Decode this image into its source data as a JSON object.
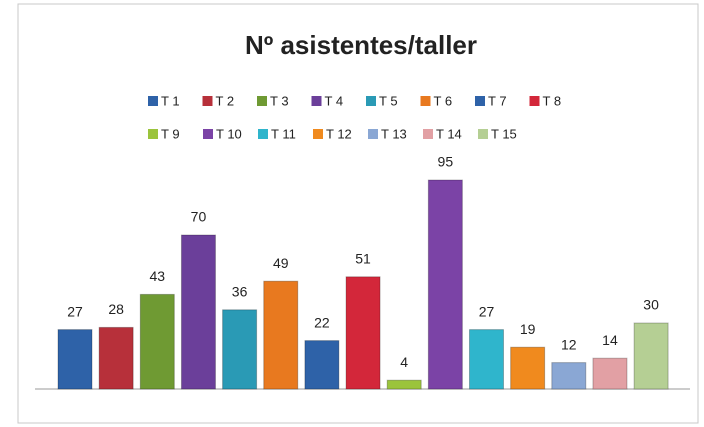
{
  "chart_data": {
    "type": "bar",
    "title": "Nº asistentes/taller",
    "series": [
      {
        "name": "T 1",
        "color": "#2e62a8",
        "values": [
          27
        ]
      },
      {
        "name": "T 2",
        "color": "#b7303a",
        "values": [
          28
        ]
      },
      {
        "name": "T 3",
        "color": "#6f9a33",
        "values": [
          43
        ]
      },
      {
        "name": "T 4",
        "color": "#6b3f9a",
        "values": [
          70
        ]
      },
      {
        "name": "T 5",
        "color": "#2a9ab5",
        "values": [
          36
        ]
      },
      {
        "name": "T 6",
        "color": "#e8791f",
        "values": [
          49
        ]
      },
      {
        "name": "T 7",
        "color": "#2e62a8",
        "values": [
          22
        ]
      },
      {
        "name": "T 8",
        "color": "#d3273a",
        "values": [
          51
        ]
      },
      {
        "name": "T 9",
        "color": "#9bc43c",
        "values": [
          4
        ]
      },
      {
        "name": "T 10",
        "color": "#7b43a6",
        "values": [
          95
        ]
      },
      {
        "name": "T 11",
        "color": "#2fb5cc",
        "values": [
          27
        ]
      },
      {
        "name": "T 12",
        "color": "#f08a1e",
        "values": [
          19
        ]
      },
      {
        "name": "T 13",
        "color": "#8aa7d4",
        "values": [
          12
        ]
      },
      {
        "name": "T 14",
        "color": "#e2a0a4",
        "values": [
          14
        ]
      },
      {
        "name": "T 15",
        "color": "#b5cf94",
        "values": [
          30
        ]
      }
    ],
    "legend": "top"
  }
}
